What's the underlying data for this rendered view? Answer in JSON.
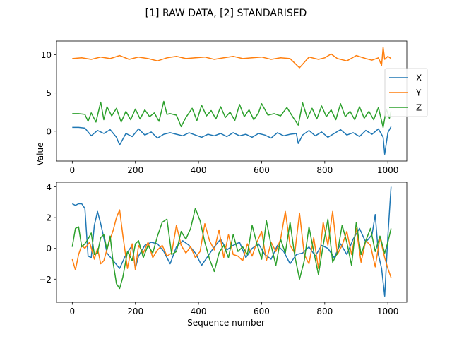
{
  "figure": {
    "suptitle": "[1] RAW DATA, [2] STANDARISED",
    "ylabel": "Value",
    "xlabel": "Sequence number"
  },
  "chart_data": [
    {
      "type": "line",
      "panel": "top",
      "ylabel": "Value",
      "xlim": [
        -50,
        1060
      ],
      "ylim": [
        -3.9,
        11.8
      ],
      "xticks": [
        0,
        200,
        400,
        600,
        800,
        1000
      ],
      "yticks": [
        0,
        5,
        10
      ],
      "legend": {
        "placement": "right",
        "entries": [
          "X",
          "Y",
          "Z"
        ]
      },
      "series": [
        {
          "name": "X",
          "color": "#1f77b4",
          "x": [
            0,
            20,
            40,
            60,
            80,
            100,
            120,
            140,
            150,
            170,
            190,
            210,
            230,
            250,
            270,
            290,
            310,
            330,
            350,
            370,
            390,
            410,
            430,
            450,
            470,
            490,
            510,
            530,
            550,
            570,
            590,
            610,
            630,
            650,
            670,
            690,
            710,
            716,
            730,
            750,
            770,
            790,
            810,
            830,
            850,
            870,
            890,
            910,
            930,
            950,
            970,
            985,
            990,
            1000,
            1010
          ],
          "values": [
            0.5,
            0.5,
            0.4,
            -0.6,
            0.1,
            -0.3,
            0.2,
            -0.8,
            -1.8,
            -0.3,
            -0.7,
            0.3,
            -0.5,
            -0.1,
            -0.9,
            -0.4,
            -0.2,
            -0.4,
            -0.6,
            -0.2,
            -0.5,
            -0.8,
            -0.4,
            -0.6,
            -0.3,
            -0.7,
            -0.2,
            -0.6,
            -0.4,
            -0.8,
            -0.3,
            -0.5,
            -0.9,
            -0.2,
            -0.6,
            -0.4,
            -0.3,
            -1.6,
            -0.5,
            0.1,
            -0.6,
            -0.1,
            -0.8,
            -0.3,
            0.2,
            -0.5,
            -0.2,
            -0.7,
            0.1,
            -0.4,
            0.3,
            -0.8,
            -3.0,
            -0.2,
            0.6
          ]
        },
        {
          "name": "Y",
          "color": "#ff7f0e",
          "x": [
            0,
            30,
            60,
            90,
            120,
            150,
            180,
            210,
            240,
            270,
            300,
            330,
            360,
            390,
            420,
            450,
            480,
            510,
            540,
            570,
            600,
            630,
            660,
            690,
            720,
            750,
            780,
            800,
            820,
            840,
            870,
            900,
            930,
            950,
            970,
            980,
            985,
            990,
            1000,
            1010
          ],
          "values": [
            9.5,
            9.6,
            9.4,
            9.7,
            9.5,
            9.9,
            9.4,
            9.7,
            9.5,
            9.2,
            9.6,
            9.8,
            9.5,
            9.6,
            9.7,
            9.4,
            9.6,
            9.8,
            9.5,
            9.6,
            9.7,
            9.4,
            9.6,
            9.5,
            8.3,
            9.7,
            9.4,
            9.6,
            10.1,
            9.5,
            9.2,
            9.9,
            9.5,
            9.3,
            9.6,
            8.6,
            11.0,
            9.4,
            9.8,
            9.5
          ]
        },
        {
          "name": "Z",
          "color": "#2ca02c",
          "x": [
            0,
            20,
            40,
            50,
            60,
            75,
            90,
            100,
            110,
            125,
            140,
            155,
            170,
            185,
            200,
            215,
            230,
            245,
            260,
            275,
            290,
            300,
            310,
            330,
            345,
            360,
            380,
            395,
            410,
            425,
            440,
            455,
            470,
            485,
            500,
            515,
            530,
            545,
            560,
            575,
            590,
            600,
            620,
            640,
            660,
            680,
            700,
            716,
            730,
            745,
            760,
            775,
            790,
            805,
            820,
            835,
            850,
            865,
            880,
            895,
            910,
            925,
            940,
            955,
            970,
            985,
            995,
            1005,
            1010
          ],
          "values": [
            2.3,
            2.3,
            2.2,
            1.3,
            2.4,
            1.2,
            3.8,
            1.5,
            3.2,
            2.0,
            3.0,
            1.2,
            2.6,
            1.5,
            2.9,
            1.6,
            2.8,
            1.9,
            2.4,
            1.3,
            3.9,
            2.2,
            2.3,
            2.1,
            0.6,
            1.8,
            3.0,
            1.4,
            3.4,
            2.0,
            2.7,
            1.6,
            3.2,
            1.8,
            2.5,
            1.4,
            3.5,
            1.9,
            2.8,
            1.5,
            2.4,
            3.6,
            2.1,
            2.3,
            2.0,
            3.1,
            1.8,
            0.8,
            3.7,
            1.7,
            3.0,
            1.6,
            3.3,
            1.9,
            2.8,
            1.5,
            3.6,
            1.9,
            2.6,
            1.5,
            3.2,
            1.7,
            2.6,
            1.5,
            3.1,
            0.5,
            2.9,
            1.7,
            2.6
          ]
        }
      ]
    },
    {
      "type": "line",
      "panel": "bottom",
      "xlabel": "Sequence number",
      "xlim": [
        -50,
        1060
      ],
      "ylim": [
        -3.5,
        4.3
      ],
      "xticks": [
        0,
        200,
        400,
        600,
        800,
        1000
      ],
      "yticks": [
        -2,
        0,
        2,
        4
      ],
      "series": [
        {
          "name": "X",
          "color": "#1f77b4",
          "x": [
            0,
            10,
            20,
            30,
            40,
            50,
            60,
            70,
            80,
            90,
            100,
            110,
            130,
            150,
            170,
            190,
            200,
            210,
            230,
            250,
            270,
            290,
            310,
            330,
            350,
            370,
            390,
            410,
            430,
            450,
            470,
            490,
            510,
            530,
            550,
            570,
            590,
            610,
            630,
            650,
            670,
            690,
            710,
            730,
            750,
            770,
            790,
            810,
            830,
            850,
            870,
            890,
            910,
            930,
            950,
            960,
            970,
            980,
            990,
            1000,
            1010
          ],
          "values": [
            2.9,
            2.8,
            2.9,
            2.9,
            2.6,
            -0.5,
            -0.6,
            1.5,
            2.4,
            1.6,
            0.7,
            -0.3,
            -0.8,
            -1.3,
            -0.4,
            0.2,
            -1.3,
            -0.5,
            0.2,
            0.4,
            0.3,
            -0.2,
            -1.0,
            0.1,
            0.5,
            0.2,
            -0.3,
            -1.1,
            -0.5,
            0.1,
            0.6,
            -0.1,
            0.2,
            0.4,
            -0.6,
            0.0,
            0.3,
            -0.4,
            -0.7,
            0.2,
            -0.2,
            -1.0,
            -0.4,
            -0.3,
            0.1,
            -0.5,
            0.2,
            0.0,
            -0.6,
            0.3,
            -0.4,
            0.6,
            1.3,
            0.4,
            0.9,
            2.2,
            -0.4,
            -1.3,
            -3.1,
            0.8,
            4.0
          ]
        },
        {
          "name": "Y",
          "color": "#ff7f0e",
          "x": [
            0,
            10,
            20,
            30,
            40,
            55,
            70,
            80,
            90,
            100,
            115,
            130,
            140,
            150,
            160,
            175,
            190,
            200,
            210,
            225,
            240,
            255,
            270,
            285,
            300,
            315,
            330,
            345,
            360,
            375,
            390,
            405,
            420,
            435,
            450,
            465,
            480,
            495,
            510,
            525,
            540,
            555,
            570,
            585,
            600,
            615,
            630,
            645,
            660,
            675,
            690,
            705,
            720,
            735,
            750,
            765,
            780,
            795,
            810,
            825,
            840,
            855,
            870,
            885,
            900,
            915,
            930,
            945,
            960,
            975,
            990,
            1000,
            1010
          ],
          "values": [
            -0.7,
            -1.4,
            -0.4,
            0.2,
            0.0,
            0.4,
            -0.7,
            0.0,
            -1.0,
            -0.8,
            0.3,
            1.2,
            2.0,
            2.5,
            0.9,
            -1.3,
            0.3,
            -1.4,
            0.2,
            -0.3,
            0.4,
            -0.6,
            -0.1,
            0.2,
            -0.5,
            -0.3,
            1.5,
            0.2,
            -0.3,
            0.1,
            -0.6,
            -0.2,
            1.6,
            0.5,
            -0.1,
            1.2,
            -0.6,
            0.9,
            -0.4,
            -0.5,
            -0.8,
            0.3,
            -0.5,
            0.4,
            1.1,
            -0.8,
            0.4,
            -0.2,
            0.6,
            2.4,
            0.2,
            -0.3,
            2.3,
            -0.4,
            -1.0,
            0.7,
            -1.3,
            1.7,
            0.2,
            2.4,
            -0.4,
            0.2,
            1.1,
            -0.4,
            1.3,
            -0.9,
            0.5,
            0.2,
            -1.2,
            0.7,
            -0.6,
            -1.3,
            -1.9
          ]
        },
        {
          "name": "Z",
          "color": "#2ca02c",
          "x": [
            0,
            10,
            20,
            30,
            40,
            50,
            60,
            70,
            80,
            90,
            100,
            110,
            120,
            130,
            140,
            150,
            160,
            175,
            190,
            200,
            210,
            225,
            240,
            255,
            270,
            285,
            300,
            315,
            330,
            345,
            360,
            375,
            390,
            405,
            420,
            435,
            450,
            465,
            480,
            495,
            510,
            525,
            540,
            555,
            570,
            585,
            600,
            615,
            630,
            645,
            660,
            675,
            690,
            705,
            720,
            735,
            750,
            765,
            780,
            795,
            810,
            825,
            840,
            855,
            870,
            885,
            900,
            915,
            930,
            945,
            960,
            975,
            990,
            1000,
            1010
          ],
          "values": [
            0.1,
            1.3,
            1.4,
            0.1,
            0.3,
            0.6,
            1.0,
            -0.4,
            -0.3,
            0.7,
            0.9,
            -0.1,
            0.8,
            -1.0,
            -2.3,
            -2.6,
            -1.9,
            -0.2,
            -0.8,
            0.3,
            0.5,
            -0.6,
            0.2,
            -0.3,
            0.8,
            1.7,
            1.9,
            -0.4,
            -0.2,
            1.1,
            0.6,
            1.3,
            2.6,
            1.8,
            0.4,
            -0.7,
            -1.5,
            -0.3,
            0.2,
            -0.6,
            0.9,
            -0.2,
            0.1,
            -0.4,
            1.5,
            0.3,
            -0.7,
            1.8,
            0.2,
            -1.1,
            0.6,
            -0.3,
            1.7,
            -0.5,
            -2.0,
            -0.8,
            1.4,
            -0.2,
            -1.7,
            0.2,
            1.9,
            -0.9,
            -0.3,
            1.5,
            0.4,
            -1.1,
            1.7,
            -0.4,
            0.5,
            1.3,
            -0.2,
            0.8,
            -0.3,
            0.4,
            1.3
          ]
        }
      ]
    }
  ]
}
